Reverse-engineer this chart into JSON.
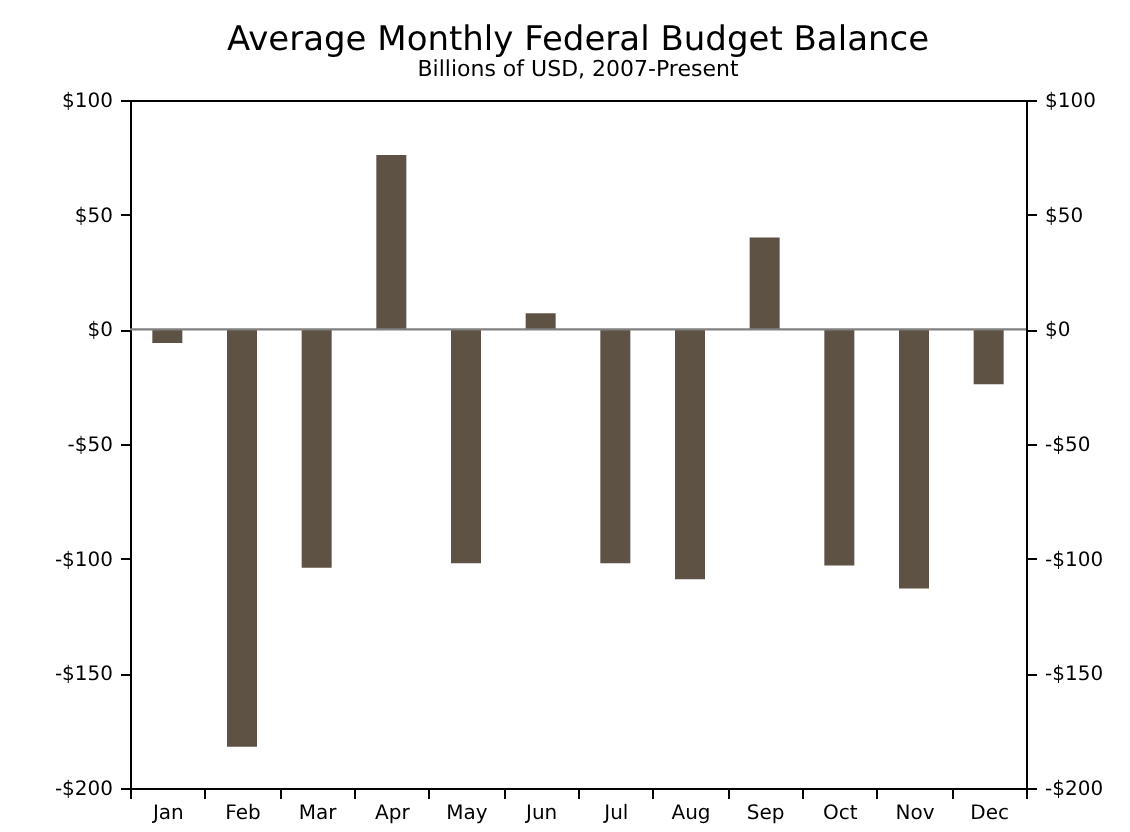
{
  "chart_data": {
    "type": "bar",
    "title": "Average Monthly Federal Budget Balance",
    "subtitle": "Billions of USD, 2007-Present",
    "categories": [
      "Jan",
      "Feb",
      "Mar",
      "Apr",
      "May",
      "Jun",
      "Jul",
      "Aug",
      "Sep",
      "Oct",
      "Nov",
      "Dec"
    ],
    "values": [
      -6,
      -182,
      -104,
      76,
      -102,
      7,
      -102,
      -109,
      40,
      -103,
      -113,
      -24
    ],
    "color": "#5e5245",
    "ylim": [
      -200,
      100
    ],
    "yticks": [
      {
        "value": -200,
        "label": "-$200"
      },
      {
        "value": -150,
        "label": "-$150"
      },
      {
        "value": -100,
        "label": "-$100"
      },
      {
        "value": -50,
        "label": "-$50"
      },
      {
        "value": 0,
        "label": "$0"
      },
      {
        "value": 50,
        "label": "$50"
      },
      {
        "value": 100,
        "label": "$100"
      }
    ],
    "y2lim": [
      -200,
      100
    ],
    "y2ticks": [
      {
        "value": -200,
        "label": "-$200"
      },
      {
        "value": -150,
        "label": "-$150"
      },
      {
        "value": -100,
        "label": "-$100"
      },
      {
        "value": -50,
        "label": "-$50"
      },
      {
        "value": 0,
        "label": "$0"
      },
      {
        "value": 50,
        "label": "$50"
      },
      {
        "value": 100,
        "label": "$100"
      }
    ],
    "ref_lines": [
      {
        "axis": "y",
        "value": 0,
        "color": "#808080"
      }
    ],
    "grid": false
  }
}
